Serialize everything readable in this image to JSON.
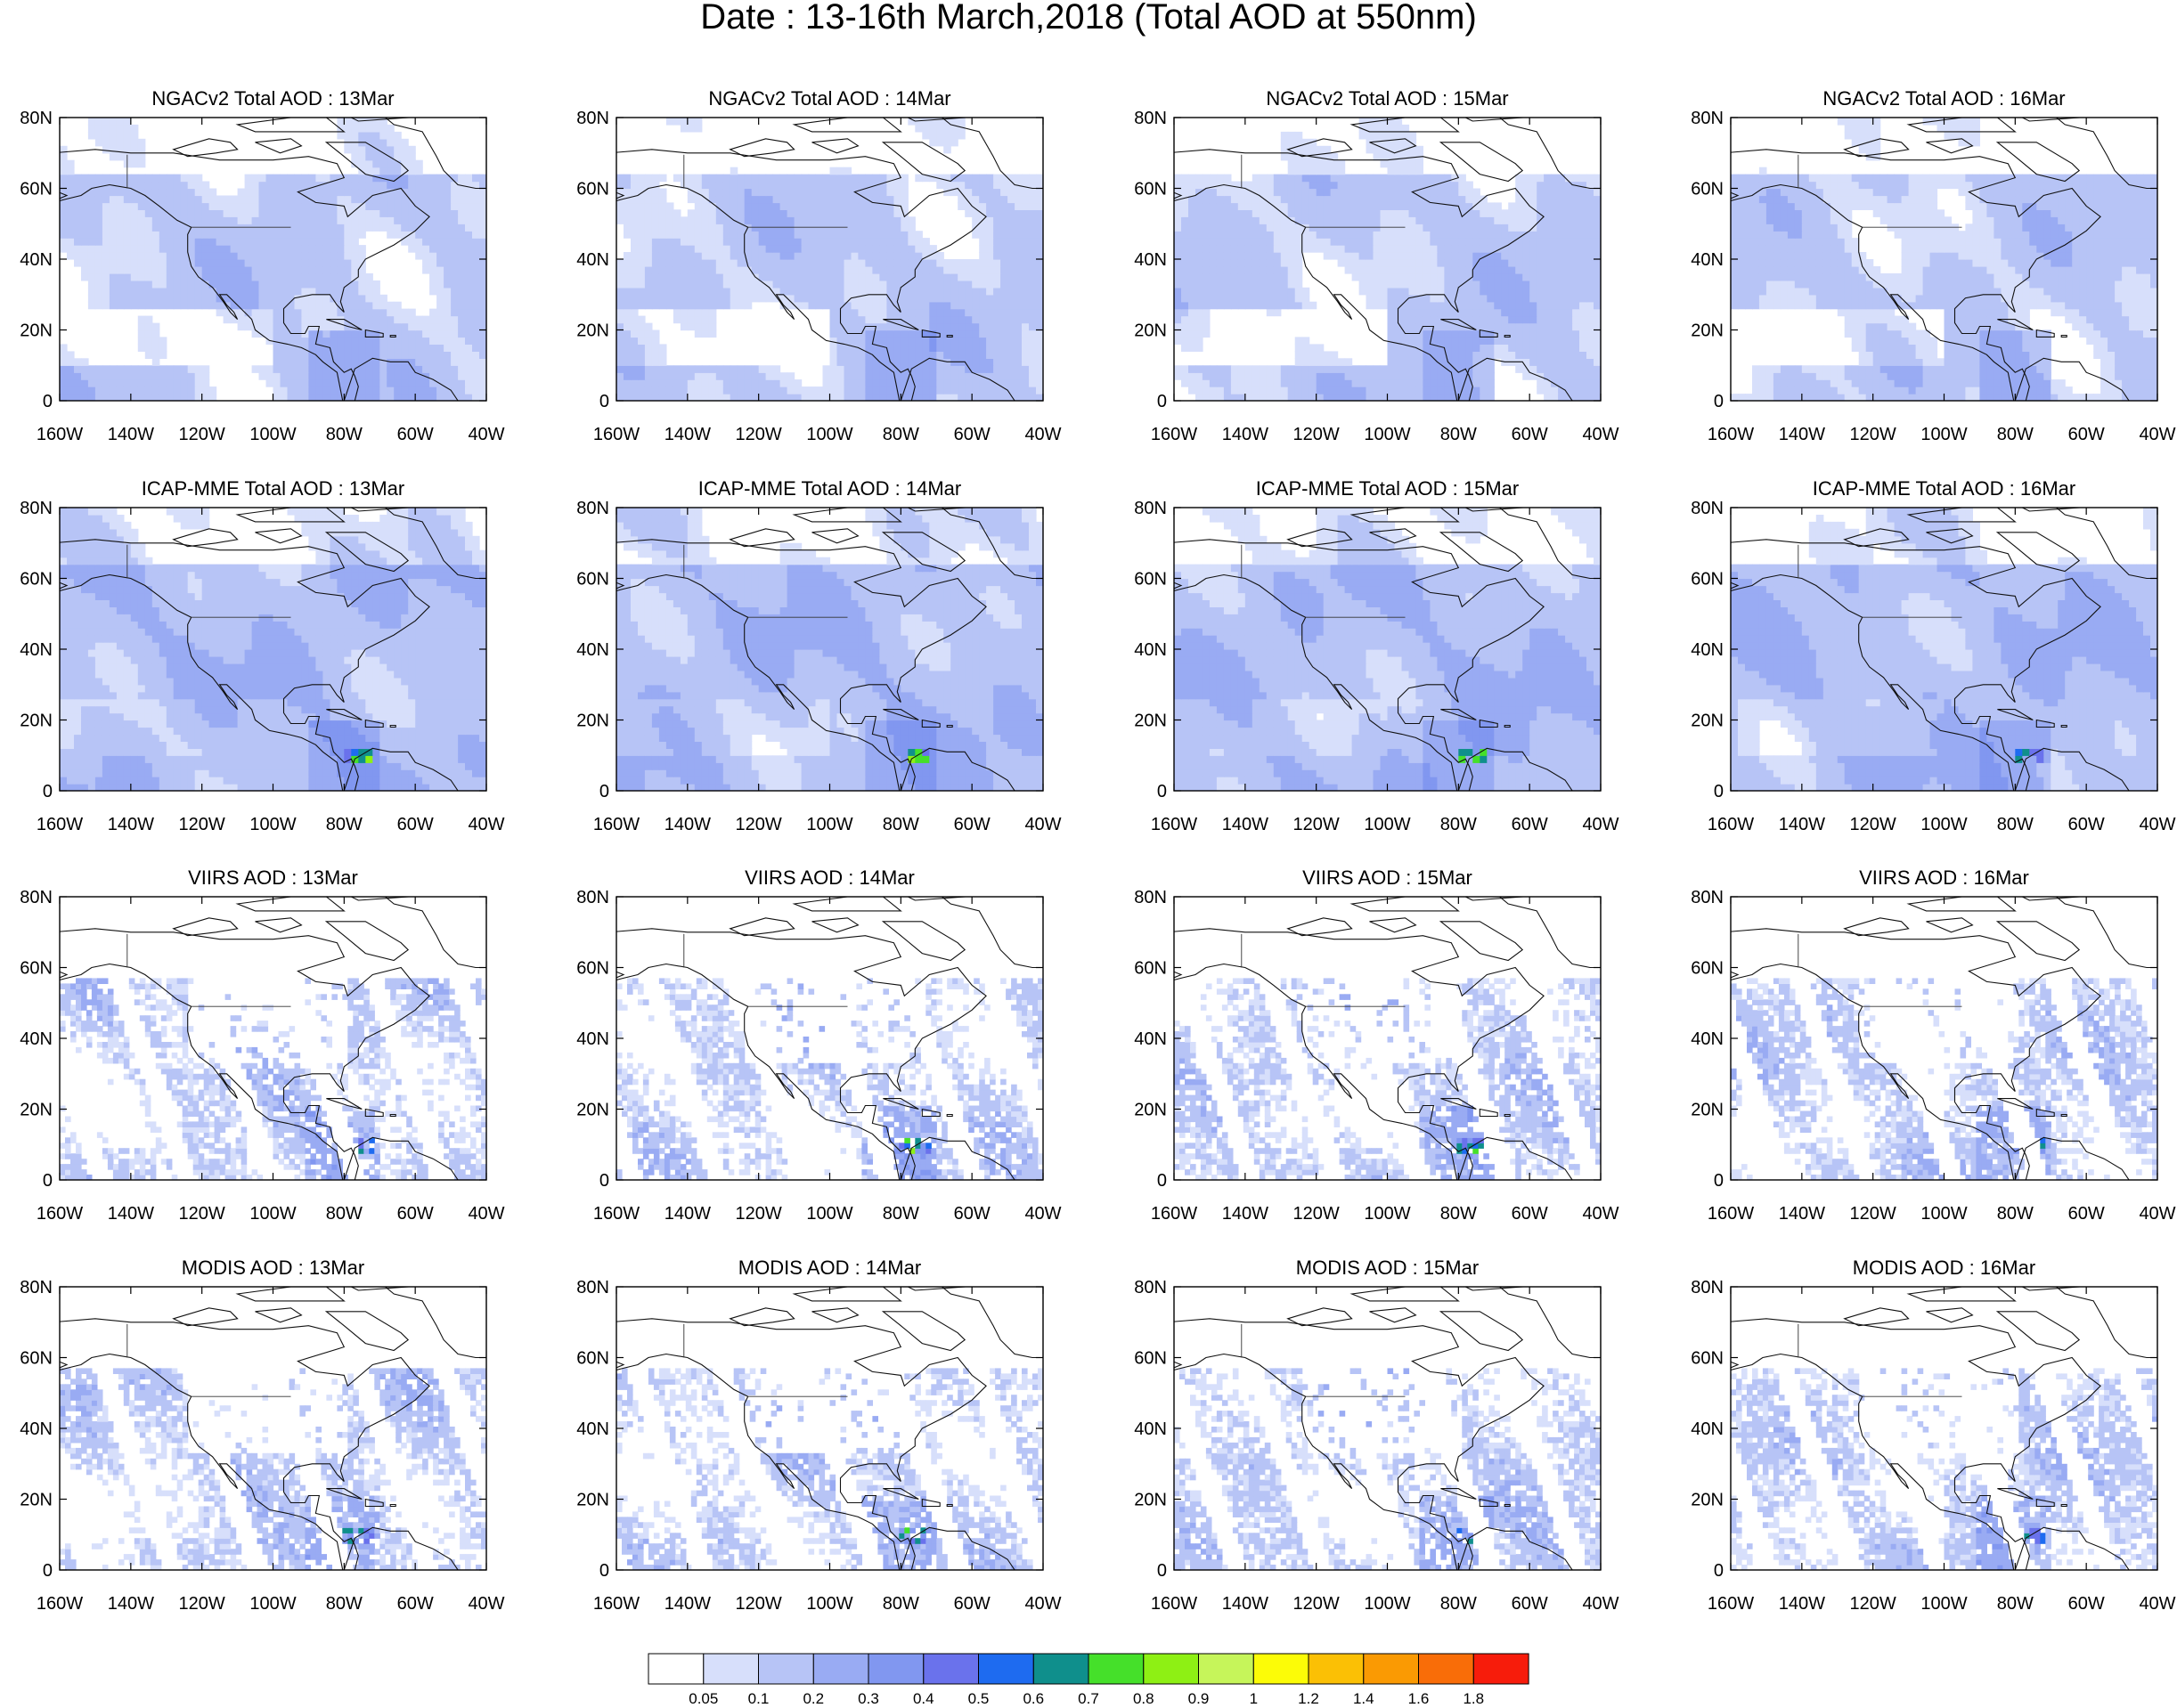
{
  "figure": {
    "title": "Date : 13-16th March,2018 (Total AOD at 550nm)"
  },
  "axes": {
    "lat_ticks": [
      "80N",
      "60N",
      "40N",
      "20N",
      "0"
    ],
    "lon_ticks": [
      "160W",
      "140W",
      "120W",
      "100W",
      "80W",
      "60W",
      "40W"
    ],
    "lon_range": [
      -160,
      -40
    ],
    "lat_range": [
      0,
      80
    ]
  },
  "colorbar": {
    "labels": [
      "0.05",
      "0.1",
      "0.2",
      "0.3",
      "0.4",
      "0.5",
      "0.6",
      "0.7",
      "0.8",
      "0.9",
      "1",
      "1.2",
      "1.4",
      "1.6",
      "1.8"
    ],
    "colors": [
      "#ffffff",
      "#d7dffb",
      "#b7c4f6",
      "#99abf3",
      "#8197f0",
      "#6a72ec",
      "#1e6bf0",
      "#0f8f8c",
      "#45e02a",
      "#8ef014",
      "#c6f55a",
      "#fcfc07",
      "#fbc005",
      "#fa9a03",
      "#f96d08",
      "#f71c0b"
    ]
  },
  "chart_data": [
    {
      "type": "heatmap",
      "title": "NGACv2 Total AOD : 13Mar",
      "product": "NGACv2",
      "day": "13Mar",
      "xlabel": "",
      "ylabel": "",
      "xlim": [
        -160,
        -40
      ],
      "ylim": [
        0,
        80
      ],
      "z_description": "Total AOD at 550nm, mostly 0.05-0.3"
    },
    {
      "type": "heatmap",
      "title": "NGACv2 Total AOD : 14Mar",
      "product": "NGACv2",
      "day": "14Mar",
      "xlim": [
        -160,
        -40
      ],
      "ylim": [
        0,
        80
      ]
    },
    {
      "type": "heatmap",
      "title": "NGACv2 Total AOD : 15Mar",
      "product": "NGACv2",
      "day": "15Mar",
      "xlim": [
        -160,
        -40
      ],
      "ylim": [
        0,
        80
      ]
    },
    {
      "type": "heatmap",
      "title": "NGACv2 Total AOD : 16Mar",
      "product": "NGACv2",
      "day": "16Mar",
      "xlim": [
        -160,
        -40
      ],
      "ylim": [
        0,
        80
      ]
    },
    {
      "type": "heatmap",
      "title": "ICAP-MME Total AOD : 13Mar",
      "product": "ICAP-MME",
      "day": "13Mar",
      "xlim": [
        -160,
        -40
      ],
      "ylim": [
        0,
        80
      ]
    },
    {
      "type": "heatmap",
      "title": "ICAP-MME Total AOD : 14Mar",
      "product": "ICAP-MME",
      "day": "14Mar",
      "xlim": [
        -160,
        -40
      ],
      "ylim": [
        0,
        80
      ]
    },
    {
      "type": "heatmap",
      "title": "ICAP-MME Total AOD : 15Mar",
      "product": "ICAP-MME",
      "day": "15Mar",
      "xlim": [
        -160,
        -40
      ],
      "ylim": [
        0,
        80
      ]
    },
    {
      "type": "heatmap",
      "title": "ICAP-MME Total AOD : 16Mar",
      "product": "ICAP-MME",
      "day": "16Mar",
      "xlim": [
        -160,
        -40
      ],
      "ylim": [
        0,
        80
      ]
    },
    {
      "type": "heatmap",
      "title": "VIIRS AOD : 13Mar",
      "product": "VIIRS",
      "day": "13Mar",
      "xlim": [
        -160,
        -40
      ],
      "ylim": [
        0,
        80
      ]
    },
    {
      "type": "heatmap",
      "title": "VIIRS AOD : 14Mar",
      "product": "VIIRS",
      "day": "14Mar",
      "xlim": [
        -160,
        -40
      ],
      "ylim": [
        0,
        80
      ]
    },
    {
      "type": "heatmap",
      "title": "VIIRS AOD : 15Mar",
      "product": "VIIRS",
      "day": "15Mar",
      "xlim": [
        -160,
        -40
      ],
      "ylim": [
        0,
        80
      ]
    },
    {
      "type": "heatmap",
      "title": "VIIRS AOD : 16Mar",
      "product": "VIIRS",
      "day": "16Mar",
      "xlim": [
        -160,
        -40
      ],
      "ylim": [
        0,
        80
      ]
    },
    {
      "type": "heatmap",
      "title": "MODIS AOD : 13Mar",
      "product": "MODIS",
      "day": "13Mar",
      "xlim": [
        -160,
        -40
      ],
      "ylim": [
        0,
        80
      ]
    },
    {
      "type": "heatmap",
      "title": "MODIS AOD : 14Mar",
      "product": "MODIS",
      "day": "14Mar",
      "xlim": [
        -160,
        -40
      ],
      "ylim": [
        0,
        80
      ]
    },
    {
      "type": "heatmap",
      "title": "MODIS AOD : 15Mar",
      "product": "MODIS",
      "day": "15Mar",
      "xlim": [
        -160,
        -40
      ],
      "ylim": [
        0,
        80
      ]
    },
    {
      "type": "heatmap",
      "title": "MODIS AOD : 16Mar",
      "product": "MODIS",
      "day": "16Mar",
      "xlim": [
        -160,
        -40
      ],
      "ylim": [
        0,
        80
      ]
    }
  ]
}
